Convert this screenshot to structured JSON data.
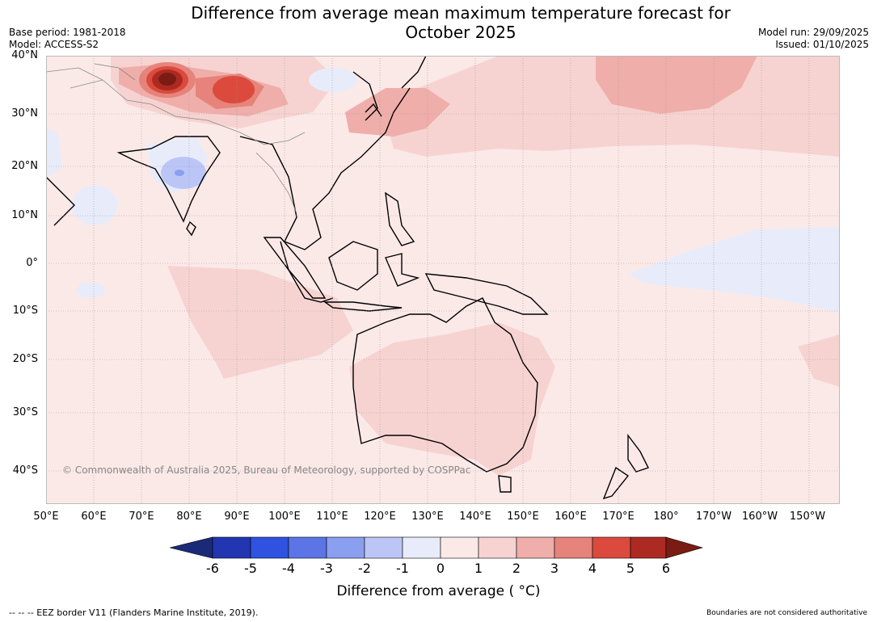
{
  "header": {
    "title_line1": "Difference from average mean maximum temperature forecast for",
    "title_line2": "October 2025",
    "base_period": "Base period: 1981-2018",
    "model": "Model: ACCESS-S2",
    "model_run": "Model run: 29/09/2025",
    "issued": "Issued: 01/10/2025"
  },
  "map": {
    "lat_labels": [
      "40°N",
      "30°N",
      "20°N",
      "10°N",
      "0°",
      "10°S",
      "20°S",
      "30°S",
      "40°S"
    ],
    "lon_labels": [
      "50°E",
      "60°E",
      "70°E",
      "80°E",
      "90°E",
      "100°E",
      "110°E",
      "120°E",
      "130°E",
      "140°E",
      "150°E",
      "160°E",
      "170°E",
      "180°",
      "170°W",
      "160°W",
      "150°W"
    ],
    "copyright": "© Commonwealth of Australia 2025, Bureau of Meteorology, supported by COSPPac",
    "anomaly_regions": [
      {
        "region": "Northern India / Himalaya",
        "class": "5 to 6+"
      },
      {
        "region": "Tibetan Plateau",
        "class": "3 to 5"
      },
      {
        "region": "Eastern China / Japan",
        "class": "1 to 3"
      },
      {
        "region": "North Pacific",
        "class": "1 to 3"
      },
      {
        "region": "Central India",
        "class": "-2 to -1"
      },
      {
        "region": "Equatorial central Pacific",
        "class": "-1 to 0"
      },
      {
        "region": "Australia",
        "class": "0 to 2"
      },
      {
        "region": "Background",
        "class": "0 to 1"
      }
    ]
  },
  "colorbar": {
    "ticks": [
      "-6",
      "-5",
      "-4",
      "-3",
      "-2",
      "-1",
      "0",
      "1",
      "2",
      "3",
      "4",
      "5",
      "6"
    ],
    "colors": [
      "#1b2a78",
      "#2136b0",
      "#2f52e0",
      "#5b74e6",
      "#8a9ff0",
      "#bcc6f6",
      "#e8ecfa",
      "#fbe9e8",
      "#f6d3d1",
      "#efaeaa",
      "#e6837b",
      "#db4a3c",
      "#ad2a22",
      "#7a1c14"
    ],
    "label": "Difference from average ( °C)"
  },
  "footer": {
    "eez_note": "--  --  -- EEZ border V11 (Flanders Marine Institute, 2019).",
    "boundary_note": "Boundaries are not considered authoritative"
  }
}
